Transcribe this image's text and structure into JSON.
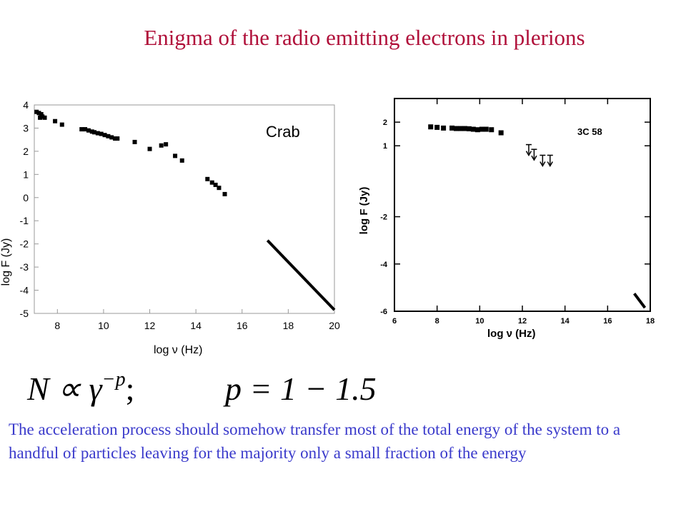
{
  "title": "Enigma of the radio emitting electrons in plerions",
  "chart_data": [
    {
      "type": "scatter",
      "label": "Crab",
      "xlabel": "log ν (Hz)",
      "ylabel": "log F (Jy)",
      "xlim": [
        7,
        20
      ],
      "ylim": [
        -5,
        4
      ],
      "xticks": [
        "8",
        "10",
        "12",
        "14",
        "16",
        "18",
        "20"
      ],
      "yticks": [
        "4",
        "3",
        "2",
        "1",
        "0",
        "-1",
        "-2",
        "-3",
        "-4",
        "-5"
      ],
      "points": [
        [
          7.1,
          3.7
        ],
        [
          7.2,
          3.65
        ],
        [
          7.3,
          3.6
        ],
        [
          7.25,
          3.45
        ],
        [
          7.35,
          3.5
        ],
        [
          7.45,
          3.45
        ],
        [
          7.9,
          3.3
        ],
        [
          8.2,
          3.15
        ],
        [
          9.05,
          2.95
        ],
        [
          9.2,
          2.95
        ],
        [
          9.35,
          2.9
        ],
        [
          9.5,
          2.85
        ],
        [
          9.6,
          2.82
        ],
        [
          9.75,
          2.78
        ],
        [
          9.9,
          2.75
        ],
        [
          10.05,
          2.7
        ],
        [
          10.2,
          2.65
        ],
        [
          10.35,
          2.6
        ],
        [
          10.5,
          2.55
        ],
        [
          10.6,
          2.55
        ],
        [
          11.35,
          2.4
        ],
        [
          12.0,
          2.1
        ],
        [
          12.5,
          2.25
        ],
        [
          12.7,
          2.3
        ],
        [
          13.1,
          1.8
        ],
        [
          13.4,
          1.6
        ],
        [
          14.5,
          0.8
        ],
        [
          14.7,
          0.65
        ],
        [
          14.85,
          0.55
        ],
        [
          15.0,
          0.42
        ],
        [
          15.25,
          0.15
        ]
      ],
      "line": [
        [
          17.1,
          -1.85
        ],
        [
          20.0,
          -4.85
        ]
      ]
    },
    {
      "type": "scatter",
      "label": "3C 58",
      "xlabel": "log ν (Hz)",
      "ylabel": "log F (Jy)",
      "xlim": [
        6,
        18
      ],
      "ylim": [
        -6,
        3
      ],
      "xticks": [
        "6",
        "8",
        "10",
        "12",
        "14",
        "16",
        "18"
      ],
      "yticks": [
        "2",
        "1",
        "-2",
        "-4",
        "-6"
      ],
      "points": [
        [
          7.7,
          1.8
        ],
        [
          8.0,
          1.78
        ],
        [
          8.3,
          1.75
        ],
        [
          8.7,
          1.75
        ],
        [
          8.9,
          1.73
        ],
        [
          9.1,
          1.73
        ],
        [
          9.3,
          1.73
        ],
        [
          9.5,
          1.72
        ],
        [
          9.7,
          1.7
        ],
        [
          9.9,
          1.68
        ],
        [
          10.1,
          1.7
        ],
        [
          10.3,
          1.7
        ],
        [
          10.55,
          1.68
        ],
        [
          11.0,
          1.55
        ]
      ],
      "upper_limits": [
        [
          12.3,
          1.05
        ],
        [
          12.55,
          0.85
        ],
        [
          12.95,
          0.6
        ],
        [
          13.3,
          0.6
        ]
      ],
      "line": [
        [
          17.25,
          -5.25
        ],
        [
          17.75,
          -5.85
        ]
      ]
    }
  ],
  "formula": {
    "lhs": "N ∝ γ",
    "exponent": "−p",
    "sep": ";",
    "rhs": "p = 1 − 1.5"
  },
  "body_text": "The acceleration process should somehow transfer most of the total energy of the system to a handful of particles leaving for the majority only a small fraction of the energy"
}
